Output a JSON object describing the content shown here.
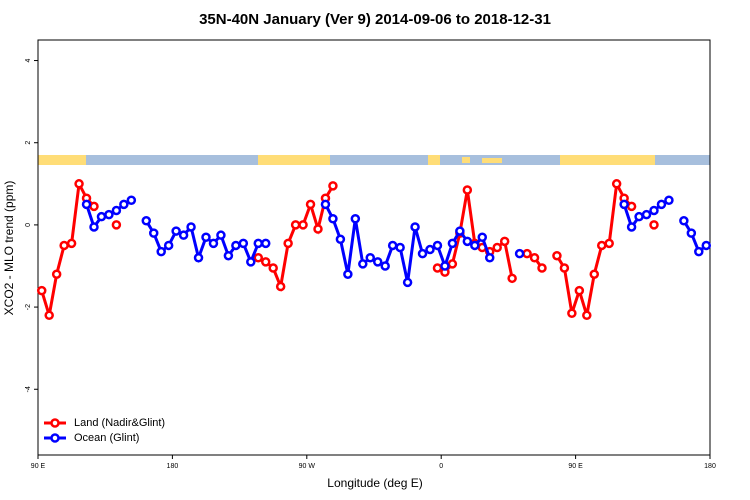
{
  "chart_data": {
    "type": "line",
    "title": "35N-40N January (Ver 9)   2014-09-06 to 2018-12-31",
    "x_label": "Longitude (deg E)",
    "y_label": "XCO2 - MLO trend (ppm)",
    "xlim": [
      90,
      540
    ],
    "xticks": [
      {
        "value": 90,
        "label": "90 E"
      },
      180,
      {
        "value": 270,
        "label": "90 W"
      },
      {
        "value": 360,
        "label": "0"
      },
      {
        "value": 450,
        "label": "90 E"
      },
      {
        "value": 540,
        "label": "180"
      }
    ],
    "ylim": [
      -5.6,
      4.5
    ],
    "yticks": [
      -4,
      -2,
      0,
      2,
      4
    ],
    "legend": "bottom-left",
    "series": [
      {
        "name": "Land (Nadir&Glint)",
        "color": "#ff0000",
        "x": [
          92.5,
          97.5,
          102.5,
          107.5,
          112.5,
          117.5,
          122.5,
          127.5,
          137.5,
          142.5,
          147.5,
          237.5,
          242.5,
          247.5,
          252.5,
          257.5,
          262.5,
          267.5,
          272.5,
          277.5,
          282.5,
          287.5,
          292.5,
          357.5,
          362.5,
          367.5,
          372.5,
          377.5,
          382.5,
          387.5,
          392.5,
          397.5,
          402.5,
          407.5,
          412.5,
          417.5,
          422.5,
          427.5,
          432.5,
          437.5,
          442.5,
          447.5,
          452.5,
          457.5,
          462.5,
          467.5,
          472.5,
          477.5,
          482.5,
          487.5,
          492.5,
          502.5
        ],
        "values": [
          -1.6,
          -2.2,
          -1.2,
          -0.5,
          -0.45,
          1.0,
          0.65,
          0.45,
          null,
          0.0,
          null,
          -0.8,
          -0.9,
          -1.05,
          -1.5,
          -0.45,
          0.0,
          0.0,
          0.5,
          -0.1,
          0.65,
          0.95,
          null,
          -1.05,
          -1.15,
          -0.95,
          -0.2,
          0.85,
          -0.45,
          -0.55,
          -0.65,
          -0.55,
          -0.4,
          -1.3,
          null,
          -0.7,
          -0.8,
          -1.05,
          null,
          -0.75,
          -1.05,
          -2.15,
          -1.6,
          -2.2,
          -1.2,
          -0.5,
          -0.45,
          1.0,
          0.65,
          0.45,
          null,
          0.0
        ]
      },
      {
        "name": "Ocean (Glint)",
        "color": "#0000ff",
        "x": [
          122.5,
          127.5,
          132.5,
          137.5,
          142.5,
          147.5,
          152.5,
          157.5,
          162.5,
          167.5,
          172.5,
          177.5,
          182.5,
          187.5,
          192.5,
          197.5,
          202.5,
          207.5,
          212.5,
          217.5,
          222.5,
          227.5,
          232.5,
          237.5,
          242.5,
          247.5,
          282.5,
          287.5,
          292.5,
          297.5,
          302.5,
          307.5,
          312.5,
          317.5,
          322.5,
          327.5,
          332.5,
          337.5,
          342.5,
          347.5,
          352.5,
          357.5,
          362.5,
          367.5,
          372.5,
          377.5,
          382.5,
          387.5,
          392.5,
          397.5,
          412.5,
          417.5,
          482.5,
          487.5,
          492.5,
          497.5,
          502.5,
          507.5,
          512.5,
          517.5,
          522.5,
          527.5,
          532.5,
          537.5
        ],
        "values": [
          0.5,
          -0.05,
          0.2,
          0.25,
          0.35,
          0.5,
          0.6,
          null,
          0.1,
          -0.2,
          -0.65,
          -0.5,
          -0.15,
          -0.25,
          -0.05,
          -0.8,
          -0.3,
          -0.45,
          -0.25,
          -0.75,
          -0.5,
          -0.45,
          -0.9,
          -0.45,
          -0.45,
          null,
          0.5,
          0.15,
          -0.35,
          -1.2,
          0.15,
          -0.95,
          -0.8,
          -0.9,
          -1.0,
          -0.5,
          -0.55,
          -1.4,
          -0.05,
          -0.7,
          -0.6,
          -0.5,
          -1.0,
          -0.45,
          -0.15,
          -0.4,
          -0.5,
          -0.3,
          -0.8,
          null,
          -0.7,
          null,
          0.5,
          -0.05,
          0.2,
          0.25,
          0.35,
          0.5,
          0.6,
          null,
          0.1,
          -0.2,
          -0.65,
          -0.5
        ]
      }
    ]
  }
}
